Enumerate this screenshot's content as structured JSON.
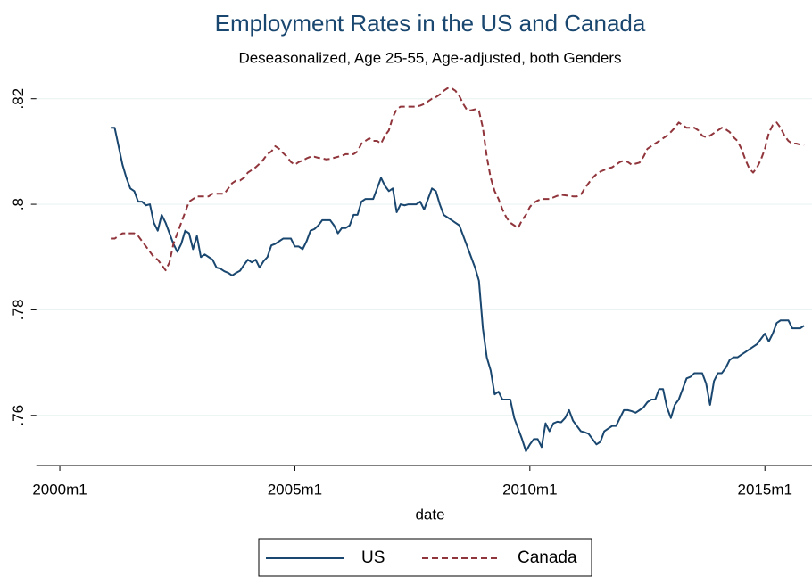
{
  "chart_data": {
    "type": "line",
    "title": "Employment Rates in the US and Canada",
    "subtitle": "Deseasonalized, Age 25-55, Age-adjusted, both Genders",
    "x_label": "date",
    "x": [
      "2001m2",
      "2001m3",
      "2001m4",
      "2001m5",
      "2001m6",
      "2001m7",
      "2001m8",
      "2001m9",
      "2001m10",
      "2001m11",
      "2001m12",
      "2002m1",
      "2002m2",
      "2002m3",
      "2002m4",
      "2002m5",
      "2002m6",
      "2002m7",
      "2002m8",
      "2002m9",
      "2002m10",
      "2002m11",
      "2002m12",
      "2003m1",
      "2003m2",
      "2003m3",
      "2003m4",
      "2003m5",
      "2003m6",
      "2003m7",
      "2003m8",
      "2003m9",
      "2003m10",
      "2003m11",
      "2003m12",
      "2004m1",
      "2004m2",
      "2004m3",
      "2004m4",
      "2004m5",
      "2004m6",
      "2004m7",
      "2004m8",
      "2004m9",
      "2004m10",
      "2004m11",
      "2004m12",
      "2005m1",
      "2005m2",
      "2005m3",
      "2005m4",
      "2005m5",
      "2005m6",
      "2005m7",
      "2005m8",
      "2005m9",
      "2005m10",
      "2005m11",
      "2005m12",
      "2006m1",
      "2006m2",
      "2006m3",
      "2006m4",
      "2006m5",
      "2006m6",
      "2006m7",
      "2006m8",
      "2006m9",
      "2006m10",
      "2006m11",
      "2006m12",
      "2007m1",
      "2007m2",
      "2007m3",
      "2007m4",
      "2007m5",
      "2007m6",
      "2007m7",
      "2007m8",
      "2007m9",
      "2007m10",
      "2007m11",
      "2007m12",
      "2008m1",
      "2008m2",
      "2008m3",
      "2008m4",
      "2008m5",
      "2008m6",
      "2008m7",
      "2008m8",
      "2008m9",
      "2008m10",
      "2008m11",
      "2008m12",
      "2009m1",
      "2009m2",
      "2009m3",
      "2009m4",
      "2009m5",
      "2009m6",
      "2009m7",
      "2009m8",
      "2009m9",
      "2009m10",
      "2009m11",
      "2009m12",
      "2010m1",
      "2010m2",
      "2010m3",
      "2010m4",
      "2010m5",
      "2010m6",
      "2010m7",
      "2010m8",
      "2010m9",
      "2010m10",
      "2010m11",
      "2010m12",
      "2011m1",
      "2011m2",
      "2011m3",
      "2011m4",
      "2011m5",
      "2011m6",
      "2011m7",
      "2011m8",
      "2011m9",
      "2011m10",
      "2011m11",
      "2011m12",
      "2012m1",
      "2012m2",
      "2012m3",
      "2012m4",
      "2012m5",
      "2012m6",
      "2012m7",
      "2012m8",
      "2012m9",
      "2012m10",
      "2012m11",
      "2012m12",
      "2013m1",
      "2013m2",
      "2013m3",
      "2013m4",
      "2013m5",
      "2013m6",
      "2013m7",
      "2013m8",
      "2013m9",
      "2013m10",
      "2013m11",
      "2013m12",
      "2014m1",
      "2014m2",
      "2014m3",
      "2014m4",
      "2014m5",
      "2014m6",
      "2014m7",
      "2014m8",
      "2014m9",
      "2014m10",
      "2014m11",
      "2014m12",
      "2015m1",
      "2015m2",
      "2015m3",
      "2015m4",
      "2015m5",
      "2015m6",
      "2015m7",
      "2015m8",
      "2015m9",
      "2015m10",
      "2015m11"
    ],
    "series": [
      {
        "name": "US",
        "color": "#1a476f",
        "dashed": false,
        "values": [
          0.8145,
          0.8145,
          0.811,
          0.8075,
          0.805,
          0.803,
          0.8025,
          0.8005,
          0.8005,
          0.7998,
          0.8,
          0.7965,
          0.795,
          0.798,
          0.7965,
          0.7945,
          0.7925,
          0.791,
          0.7925,
          0.795,
          0.7945,
          0.7915,
          0.794,
          0.79,
          0.7905,
          0.79,
          0.7895,
          0.788,
          0.7878,
          0.7873,
          0.787,
          0.7865,
          0.787,
          0.7874,
          0.7885,
          0.7895,
          0.789,
          0.7895,
          0.788,
          0.7892,
          0.79,
          0.7922,
          0.7925,
          0.793,
          0.7935,
          0.7935,
          0.7935,
          0.792,
          0.792,
          0.7915,
          0.793,
          0.795,
          0.7953,
          0.796,
          0.797,
          0.797,
          0.797,
          0.796,
          0.7945,
          0.7955,
          0.7955,
          0.796,
          0.798,
          0.798,
          0.8005,
          0.801,
          0.801,
          0.801,
          0.803,
          0.805,
          0.8035,
          0.8025,
          0.803,
          0.7985,
          0.8,
          0.7998,
          0.8,
          0.8,
          0.8,
          0.8005,
          0.799,
          0.801,
          0.803,
          0.8025,
          0.8,
          0.798,
          0.7975,
          0.797,
          0.7965,
          0.796,
          0.794,
          0.792,
          0.79,
          0.788,
          0.7855,
          0.7765,
          0.771,
          0.7685,
          0.764,
          0.7645,
          0.763,
          0.763,
          0.763,
          0.7595,
          0.7575,
          0.7555,
          0.7532,
          0.7545,
          0.7555,
          0.7555,
          0.754,
          0.7585,
          0.757,
          0.7585,
          0.7588,
          0.7587,
          0.7595,
          0.761,
          0.759,
          0.758,
          0.757,
          0.7568,
          0.7565,
          0.7555,
          0.7545,
          0.755,
          0.757,
          0.7575,
          0.758,
          0.758,
          0.7595,
          0.761,
          0.761,
          0.7608,
          0.7605,
          0.761,
          0.7615,
          0.7625,
          0.763,
          0.763,
          0.765,
          0.765,
          0.7615,
          0.7595,
          0.762,
          0.763,
          0.765,
          0.767,
          0.7673,
          0.768,
          0.768,
          0.768,
          0.766,
          0.762,
          0.7665,
          0.768,
          0.768,
          0.769,
          0.7705,
          0.771,
          0.771,
          0.7715,
          0.772,
          0.7725,
          0.773,
          0.7735,
          0.7745,
          0.7755,
          0.774,
          0.7755,
          0.7775,
          0.778,
          0.778,
          0.778,
          0.7765,
          0.7765,
          0.7765,
          0.777
        ]
      },
      {
        "name": "Canada",
        "color": "#90353b",
        "dashed": true,
        "values": [
          0.7935,
          0.7935,
          0.794,
          0.7945,
          0.7945,
          0.7945,
          0.7945,
          0.794,
          0.793,
          0.792,
          0.791,
          0.79,
          0.7895,
          0.7885,
          0.7875,
          0.789,
          0.7925,
          0.7945,
          0.7965,
          0.7985,
          0.8005,
          0.801,
          0.8015,
          0.8015,
          0.8015,
          0.8015,
          0.802,
          0.802,
          0.802,
          0.802,
          0.803,
          0.804,
          0.8045,
          0.8045,
          0.805,
          0.806,
          0.8065,
          0.807,
          0.8077,
          0.8085,
          0.8095,
          0.81,
          0.811,
          0.8105,
          0.8097,
          0.809,
          0.808,
          0.8075,
          0.808,
          0.8083,
          0.8087,
          0.809,
          0.809,
          0.8088,
          0.8087,
          0.8085,
          0.8086,
          0.8088,
          0.809,
          0.8092,
          0.8095,
          0.8095,
          0.8095,
          0.81,
          0.8115,
          0.812,
          0.8125,
          0.812,
          0.812,
          0.8115,
          0.813,
          0.814,
          0.8165,
          0.818,
          0.8185,
          0.8185,
          0.8185,
          0.8185,
          0.8185,
          0.8187,
          0.819,
          0.8195,
          0.82,
          0.8203,
          0.8208,
          0.8215,
          0.822,
          0.822,
          0.8215,
          0.8205,
          0.819,
          0.8178,
          0.8178,
          0.818,
          0.8177,
          0.8145,
          0.809,
          0.805,
          0.8025,
          0.801,
          0.799,
          0.7975,
          0.7965,
          0.796,
          0.7955,
          0.797,
          0.798,
          0.7995,
          0.8003,
          0.8007,
          0.801,
          0.801,
          0.801,
          0.8013,
          0.8016,
          0.8018,
          0.8017,
          0.8016,
          0.8015,
          0.8015,
          0.8018,
          0.803,
          0.804,
          0.805,
          0.8057,
          0.8062,
          0.8065,
          0.8068,
          0.807,
          0.8075,
          0.808,
          0.8083,
          0.808,
          0.8075,
          0.8077,
          0.8079,
          0.809,
          0.8105,
          0.811,
          0.8115,
          0.812,
          0.8125,
          0.813,
          0.8137,
          0.8145,
          0.8155,
          0.815,
          0.8145,
          0.8145,
          0.8145,
          0.814,
          0.813,
          0.8127,
          0.813,
          0.8135,
          0.814,
          0.8145,
          0.8142,
          0.8137,
          0.8127,
          0.812,
          0.8105,
          0.8085,
          0.8068,
          0.806,
          0.807,
          0.8085,
          0.8105,
          0.8135,
          0.815,
          0.8155,
          0.8145,
          0.813,
          0.812,
          0.8115,
          0.8115,
          0.8113,
          0.8112
        ]
      }
    ],
    "xlim": [
      "1999m7",
      "2016m1"
    ],
    "xticks": [
      "2000m1",
      "2005m1",
      "2010m1",
      "2015m1"
    ],
    "ylim": [
      0.7505,
      0.8235
    ],
    "yticks": [
      {
        "value": 0.76,
        "label": ".76"
      },
      {
        "value": 0.78,
        "label": ".78"
      },
      {
        "value": 0.8,
        "label": ".8"
      },
      {
        "value": 0.82,
        "label": ".82"
      }
    ],
    "grid": true
  }
}
